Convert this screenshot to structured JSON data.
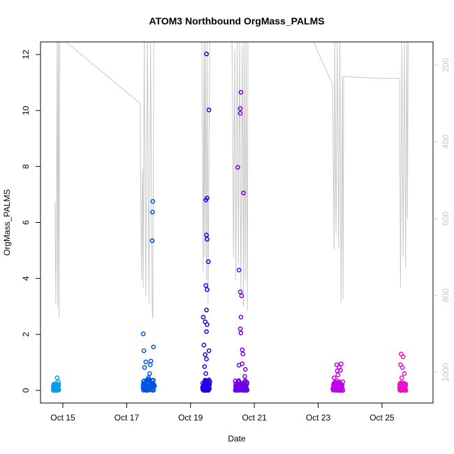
{
  "chart_data": {
    "type": "scatter",
    "title": "ATOM3 Northbound OrgMass_PALMS",
    "xlabel": "Date",
    "ylabel": "OrgMass_PALMS",
    "xlim": [
      14.3,
      26.6
    ],
    "ylim": [
      -0.45,
      12.45
    ],
    "x_ticks": [
      {
        "value": 15,
        "label": "Oct 15"
      },
      {
        "value": 17,
        "label": "Oct 17"
      },
      {
        "value": 19,
        "label": "Oct 19"
      },
      {
        "value": 21,
        "label": "Oct 21"
      },
      {
        "value": 23,
        "label": "Oct 23"
      },
      {
        "value": 25,
        "label": "Oct 25"
      }
    ],
    "y_ticks": [
      0,
      2,
      4,
      6,
      8,
      10,
      12
    ],
    "y2_ticks": [
      200,
      400,
      600,
      800,
      1000
    ],
    "y2lim": [
      1080,
      140
    ],
    "grid": false,
    "colors": {
      "axis": "#000000",
      "pressure_line": "#c8c8c8",
      "right_axis": "#c8c8c8",
      "gradient": [
        "#0a9ae8",
        "#0055e0",
        "#2000e8",
        "#7000e8",
        "#c000e8",
        "#f010c8"
      ]
    },
    "series": [
      {
        "kind": "points",
        "points": [
          [
            14.72,
            0.12
          ],
          [
            14.78,
            0.25
          ],
          [
            14.82,
            0.45
          ],
          [
            14.86,
            0.3
          ],
          [
            14.76,
            0.05
          ],
          [
            17.52,
            2.02
          ],
          [
            17.54,
            1.42
          ],
          [
            17.56,
            0.82
          ],
          [
            17.6,
            1.02
          ],
          [
            17.82,
            6.75
          ],
          [
            17.81,
            6.37
          ],
          [
            17.8,
            5.35
          ],
          [
            17.84,
            1.55
          ],
          [
            17.76,
            1.05
          ],
          [
            17.72,
            0.6
          ],
          [
            17.74,
            0.92
          ],
          [
            17.68,
            0.45
          ],
          [
            19.5,
            12.02
          ],
          [
            19.58,
            10.02
          ],
          [
            19.52,
            6.87
          ],
          [
            19.48,
            6.8
          ],
          [
            19.5,
            5.55
          ],
          [
            19.52,
            5.4
          ],
          [
            19.56,
            4.6
          ],
          [
            19.48,
            3.75
          ],
          [
            19.52,
            3.6
          ],
          [
            19.5,
            2.87
          ],
          [
            19.4,
            2.62
          ],
          [
            19.46,
            2.45
          ],
          [
            19.52,
            2.35
          ],
          [
            19.5,
            2.1
          ],
          [
            19.42,
            1.62
          ],
          [
            19.46,
            1.28
          ],
          [
            19.5,
            1.12
          ],
          [
            19.58,
            1.42
          ],
          [
            19.44,
            0.85
          ],
          [
            19.48,
            0.6
          ],
          [
            20.58,
            10.65
          ],
          [
            20.56,
            10.07
          ],
          [
            20.56,
            9.9
          ],
          [
            20.48,
            7.97
          ],
          [
            20.66,
            7.05
          ],
          [
            20.52,
            4.3
          ],
          [
            20.56,
            3.52
          ],
          [
            20.6,
            3.38
          ],
          [
            20.58,
            2.62
          ],
          [
            20.56,
            2.2
          ],
          [
            20.58,
            2.05
          ],
          [
            20.62,
            1.45
          ],
          [
            20.64,
            1.3
          ],
          [
            20.52,
            0.9
          ],
          [
            20.62,
            0.95
          ],
          [
            20.72,
            0.75
          ],
          [
            20.7,
            0.5
          ],
          [
            23.58,
            0.92
          ],
          [
            23.72,
            0.95
          ],
          [
            23.66,
            0.82
          ],
          [
            23.6,
            0.7
          ],
          [
            23.7,
            0.72
          ],
          [
            23.62,
            0.55
          ],
          [
            23.5,
            0.45
          ],
          [
            23.58,
            0.35
          ],
          [
            25.6,
            1.3
          ],
          [
            25.66,
            1.2
          ],
          [
            25.58,
            0.92
          ],
          [
            25.64,
            0.82
          ],
          [
            25.7,
            0.6
          ],
          [
            25.62,
            0.45
          ]
        ]
      },
      {
        "kind": "clusters",
        "clusters": [
          {
            "x": [
              14.7,
              14.88
            ],
            "y": [
              0.0,
              0.22
            ]
          },
          {
            "x": [
              17.5,
              17.88
            ],
            "y": [
              0.0,
              0.4
            ]
          },
          {
            "x": [
              19.38,
              19.62
            ],
            "y": [
              0.0,
              0.38
            ]
          },
          {
            "x": [
              20.4,
              20.78
            ],
            "y": [
              0.0,
              0.35
            ]
          },
          {
            "x": [
              23.45,
              23.78
            ],
            "y": [
              0.0,
              0.32
            ]
          },
          {
            "x": [
              25.55,
              25.75
            ],
            "y": [
              0.0,
              0.28
            ]
          }
        ]
      },
      {
        "kind": "pressure",
        "path": [
          [
            14.76,
            555
          ],
          [
            14.78,
            820
          ],
          [
            14.8,
            650
          ],
          [
            14.82,
            140
          ],
          [
            14.84,
            830
          ],
          [
            14.86,
            140
          ],
          [
            14.88,
            860
          ],
          [
            14.9,
            140
          ],
          [
            14.9,
            140
          ],
          [
            15.1,
            140
          ],
          [
            17.42,
            300
          ],
          [
            17.45,
            620
          ],
          [
            17.47,
            760
          ],
          [
            17.48,
            560
          ],
          [
            17.5,
            470
          ],
          [
            17.52,
            780
          ],
          [
            17.55,
            140
          ],
          [
            17.6,
            800
          ],
          [
            17.65,
            140
          ],
          [
            17.7,
            820
          ],
          [
            17.75,
            140
          ],
          [
            17.8,
            840
          ],
          [
            17.82,
            860
          ],
          [
            17.85,
            140
          ],
          [
            17.85,
            140
          ],
          [
            19.35,
            140
          ],
          [
            19.4,
            740
          ],
          [
            19.42,
            140
          ],
          [
            19.44,
            700
          ],
          [
            19.46,
            140
          ],
          [
            19.5,
            760
          ],
          [
            19.52,
            140
          ],
          [
            19.55,
            820
          ],
          [
            19.6,
            140
          ],
          [
            19.6,
            140
          ],
          [
            20.3,
            140
          ],
          [
            20.35,
            700
          ],
          [
            20.38,
            160
          ],
          [
            20.42,
            760
          ],
          [
            20.46,
            140
          ],
          [
            20.5,
            720
          ],
          [
            20.54,
            140
          ],
          [
            20.58,
            790
          ],
          [
            20.62,
            150
          ],
          [
            20.66,
            830
          ],
          [
            20.68,
            140
          ],
          [
            20.72,
            760
          ],
          [
            20.74,
            140
          ],
          [
            20.78,
            840
          ],
          [
            20.8,
            140
          ],
          [
            20.8,
            140
          ],
          [
            22.85,
            140
          ],
          [
            23.45,
            250
          ],
          [
            23.5,
            680
          ],
          [
            23.52,
            140
          ],
          [
            23.56,
            640
          ],
          [
            23.6,
            140
          ],
          [
            23.64,
            680
          ],
          [
            23.68,
            140
          ],
          [
            23.72,
            820
          ],
          [
            23.76,
            230
          ],
          [
            23.78,
            810
          ],
          [
            23.8,
            230
          ],
          [
            25.0,
            235
          ],
          [
            25.55,
            235
          ],
          [
            25.58,
            780
          ],
          [
            25.62,
            140
          ],
          [
            25.66,
            700
          ],
          [
            25.7,
            140
          ],
          [
            25.74,
            730
          ],
          [
            25.78,
            140
          ],
          [
            25.8,
            600
          ],
          [
            25.82,
            140
          ]
        ]
      }
    ]
  }
}
